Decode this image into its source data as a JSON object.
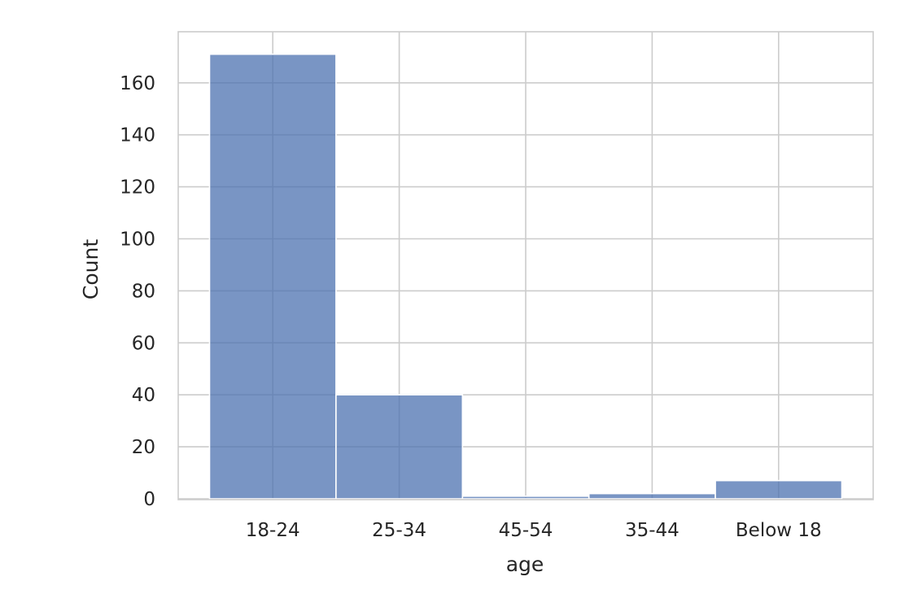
{
  "chart_data": {
    "type": "bar",
    "title": "",
    "xlabel": "age",
    "ylabel": "Count",
    "categories": [
      "18-24",
      "25-34",
      "45-54",
      "35-44",
      "Below 18"
    ],
    "values": [
      171,
      40,
      1,
      2,
      7
    ],
    "ylim": [
      0,
      180
    ],
    "yticks": [
      0,
      20,
      40,
      60,
      80,
      100,
      120,
      140,
      160
    ],
    "grid": true,
    "legend": "none",
    "bar_color": "#4c72b0",
    "grid_color": "#cccccc",
    "background_color": "#ffffff",
    "text_color": "#262626"
  }
}
